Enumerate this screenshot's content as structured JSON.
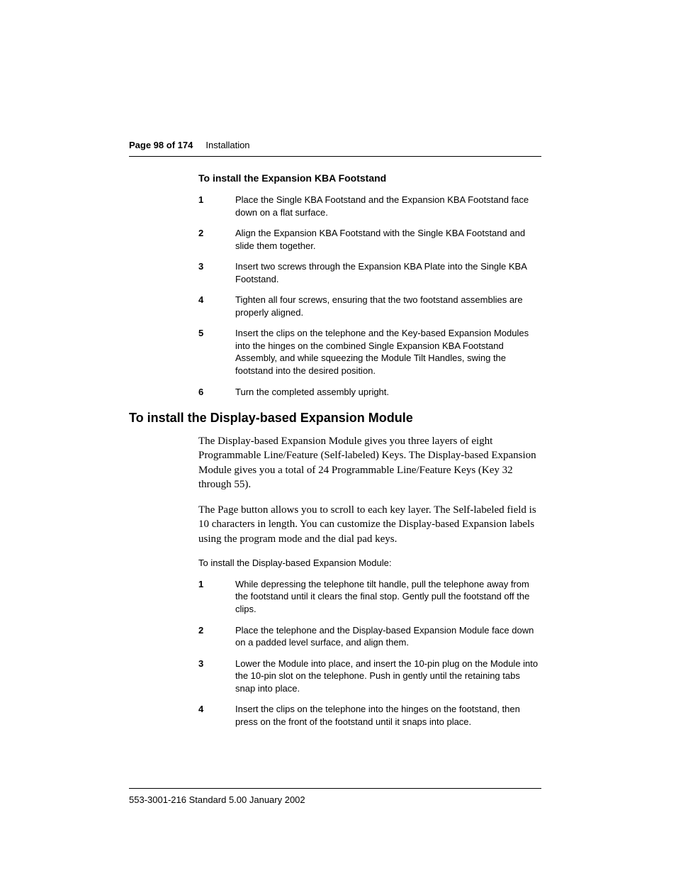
{
  "header": {
    "page_label": "Page 98 of 174",
    "section": "Installation"
  },
  "sub1": {
    "title": "To install the Expansion KBA Footstand",
    "steps": [
      {
        "n": "1",
        "t": "Place the Single KBA Footstand and the Expansion KBA Footstand face down on a flat surface."
      },
      {
        "n": "2",
        "t": "Align the Expansion KBA Footstand with the Single KBA Footstand and slide them together."
      },
      {
        "n": "3",
        "t": "Insert two screws through the Expansion KBA Plate into the Single KBA Footstand."
      },
      {
        "n": "4",
        "t": "Tighten all four screws, ensuring that the two footstand assemblies are properly aligned."
      },
      {
        "n": "5",
        "t": "Insert the clips on the telephone and the Key-based Expansion Modules into the hinges on the combined Single Expansion KBA Footstand Assembly, and while squeezing the Module Tilt Handles, swing the footstand into the desired position."
      },
      {
        "n": "6",
        "t": "Turn the completed assembly upright."
      }
    ]
  },
  "section2": {
    "heading": "To install the Display-based Expansion Module",
    "para1": "The Display-based Expansion Module gives you three layers of eight Programmable Line/Feature (Self-labeled) Keys. The Display-based Expansion Module gives you a total of 24 Programmable Line/Feature Keys (Key 32 through 55).",
    "para2": "The Page button allows you to scroll to each key layer. The Self-labeled field is 10 characters in length. You can customize the Display-based Expansion labels using the program mode and the dial pad keys.",
    "instr": "To install the Display-based Expansion Module:",
    "steps": [
      {
        "n": "1",
        "t": "While depressing the telephone tilt handle, pull the telephone away from the footstand until it clears the final stop. Gently pull the footstand off the clips."
      },
      {
        "n": "2",
        "t": "Place the telephone and the Display-based Expansion Module face down on a padded level surface, and align them."
      },
      {
        "n": "3",
        "t": "Lower the Module into place, and insert the 10-pin plug on the Module into the 10-pin slot on the telephone. Push in gently until the retaining tabs snap into place."
      },
      {
        "n": "4",
        "t": "Insert the clips on the telephone into the hinges on the footstand, then press on the front of the footstand until it snaps into place."
      }
    ]
  },
  "footer": {
    "text": "553-3001-216   Standard   5.00    January 2002"
  }
}
